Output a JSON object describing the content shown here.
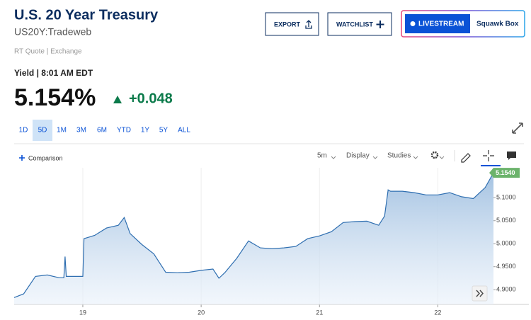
{
  "header": {
    "title": "U.S. 20 Year Treasury",
    "symbol": "US20Y:Tradeweb",
    "export": "EXPORT",
    "watchlist": "WATCHLIST",
    "livestream": "LIVESTREAM",
    "squawk_box": "Squawk Box"
  },
  "quote": {
    "source": "RT Quote | Exchange",
    "label": "Yield | 8:01 AM EDT",
    "price": "5.154%",
    "change": "+0.048"
  },
  "ranges": [
    "1D",
    "5D",
    "1M",
    "3M",
    "6M",
    "YTD",
    "1Y",
    "5Y",
    "ALL"
  ],
  "toolbar": {
    "comparison": "Comparison",
    "interval": "5m",
    "display": "Display",
    "studies": "Studies"
  },
  "chart_data": {
    "type": "area",
    "x": [
      18.42,
      18.5,
      18.6,
      18.7,
      18.8,
      18.84,
      18.85,
      18.86,
      18.9,
      19.0,
      19.01,
      19.1,
      19.2,
      19.3,
      19.35,
      19.4,
      19.5,
      19.6,
      19.7,
      19.8,
      19.9,
      20.0,
      20.1,
      20.15,
      20.2,
      20.3,
      20.4,
      20.5,
      20.6,
      20.7,
      20.8,
      20.9,
      21.0,
      21.1,
      21.2,
      21.3,
      21.4,
      21.5,
      21.55,
      21.58,
      21.6,
      21.7,
      21.8,
      21.9,
      22.0,
      22.1,
      22.2,
      22.3,
      22.4,
      22.47
    ],
    "values": [
      4.883,
      4.891,
      4.929,
      4.932,
      4.926,
      4.926,
      4.972,
      4.929,
      4.929,
      4.929,
      5.011,
      5.018,
      5.034,
      5.04,
      5.057,
      5.022,
      4.998,
      4.978,
      4.938,
      4.937,
      4.938,
      4.942,
      4.945,
      4.925,
      4.937,
      4.968,
      5.006,
      4.991,
      4.989,
      4.991,
      4.994,
      5.011,
      5.017,
      5.026,
      5.046,
      5.048,
      5.049,
      5.04,
      5.06,
      5.117,
      5.114,
      5.114,
      5.111,
      5.106,
      5.106,
      5.111,
      5.102,
      5.098,
      5.122,
      5.154
    ],
    "color": "#2e6eb0",
    "last_value_tag": {
      "value": 5.154,
      "label": "5.1540"
    },
    "xlim": [
      18.42,
      22.47
    ],
    "xticks": [
      19,
      20,
      21,
      22
    ],
    "ylim": [
      4.868,
      5.165
    ],
    "yticks": [
      {
        "value": 4.9,
        "label": "4.9000"
      },
      {
        "value": 4.95,
        "label": "4.9500"
      },
      {
        "value": 5.0,
        "label": "5.0000"
      },
      {
        "value": 5.05,
        "label": "5.0500"
      },
      {
        "value": 5.1,
        "label": "5.1000"
      }
    ],
    "grid": true
  }
}
